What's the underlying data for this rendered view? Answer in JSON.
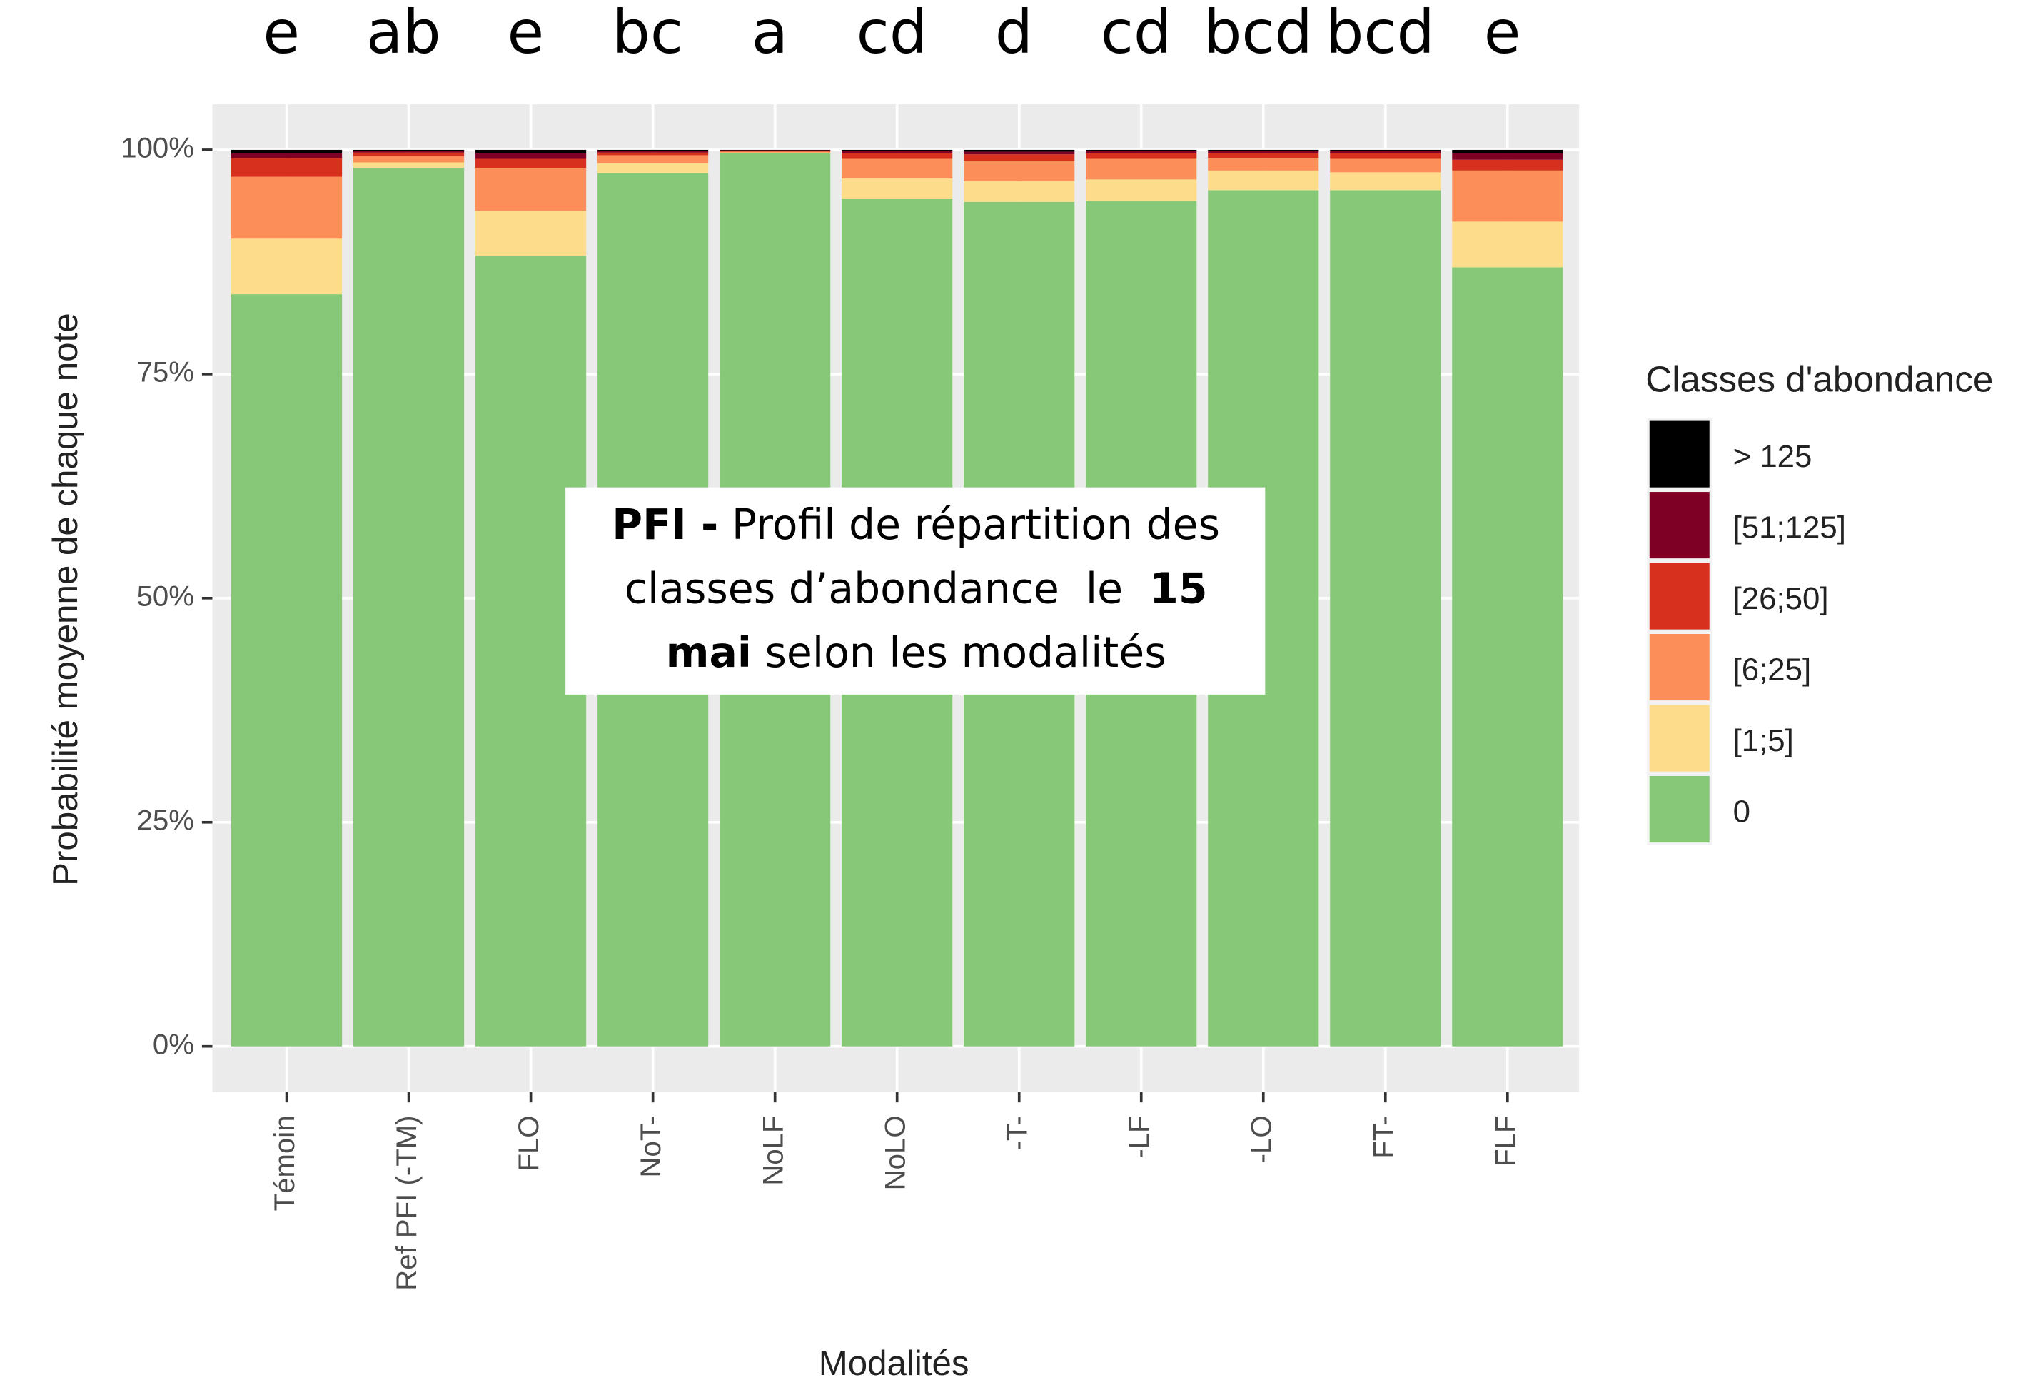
{
  "chart_data": {
    "type": "stacked_bar",
    "y_label": "Probabilité moyenne de chaque note",
    "x_label": "Modalités",
    "legend_title": "Classes d'abondance",
    "categories": [
      "Témoin",
      "Ref PFI (-TM)",
      "FLO",
      "NoT-",
      "NoLF",
      "NoLO",
      "-T-",
      "-LF",
      "-LO",
      "FT-",
      "FLF"
    ],
    "group_letters": [
      "e",
      "ab",
      "e",
      "bc",
      "a",
      "cd",
      "d",
      "cd",
      "bcd",
      "bcd",
      "e"
    ],
    "series": [
      {
        "name": "0",
        "color": "#86c878",
        "values": [
          83.9,
          98,
          88.2,
          97.4,
          99.6,
          94.5,
          94.2,
          94.3,
          95.5,
          95.5,
          86.9
        ]
      },
      {
        "name": "[1;5]",
        "color": "#fddd8c",
        "values": [
          6.2,
          0.6,
          5,
          1.1,
          0.1,
          2.3,
          2.3,
          2.4,
          2.2,
          2,
          5.1
        ]
      },
      {
        "name": "[6;25]",
        "color": "#fc8f59",
        "values": [
          6.9,
          0.7,
          4.8,
          0.9,
          0.1,
          2.2,
          2.3,
          2.3,
          1.4,
          1.5,
          5.7
        ]
      },
      {
        "name": "[26;50]",
        "color": "#d7301f",
        "values": [
          2.1,
          0.4,
          1,
          0.3,
          0.1,
          0.6,
          0.7,
          0.6,
          0.5,
          0.6,
          1.2
        ]
      },
      {
        "name": "[51;125]",
        "color": "#7f0025",
        "values": [
          0.5,
          0.2,
          0.6,
          0.2,
          0.05,
          0.3,
          0.3,
          0.3,
          0.3,
          0.3,
          0.7
        ]
      },
      {
        "name": "> 125",
        "color": "#000000",
        "values": [
          0.4,
          0.1,
          0.4,
          0.1,
          0.05,
          0.1,
          0.2,
          0.1,
          0.1,
          0.1,
          0.4
        ]
      }
    ],
    "ylim": [
      0,
      100
    ],
    "yticks": [
      {
        "value": 0,
        "label": "0%"
      },
      {
        "value": 25,
        "label": "25%"
      },
      {
        "value": 50,
        "label": "50%"
      },
      {
        "value": 75,
        "label": "75%"
      },
      {
        "value": 100,
        "label": "100%"
      }
    ],
    "grid": true,
    "annotation_lines": [
      [
        {
          "text": "PFI -",
          "bold": true
        },
        {
          "text": " Profil de répartition des",
          "bold": false
        }
      ],
      [
        {
          "text": "classes d’abondance  le  ",
          "bold": false
        },
        {
          "text": "15",
          "bold": true
        }
      ],
      [
        {
          "text": "mai",
          "bold": true
        },
        {
          "text": " selon les modalités",
          "bold": false
        }
      ]
    ]
  }
}
